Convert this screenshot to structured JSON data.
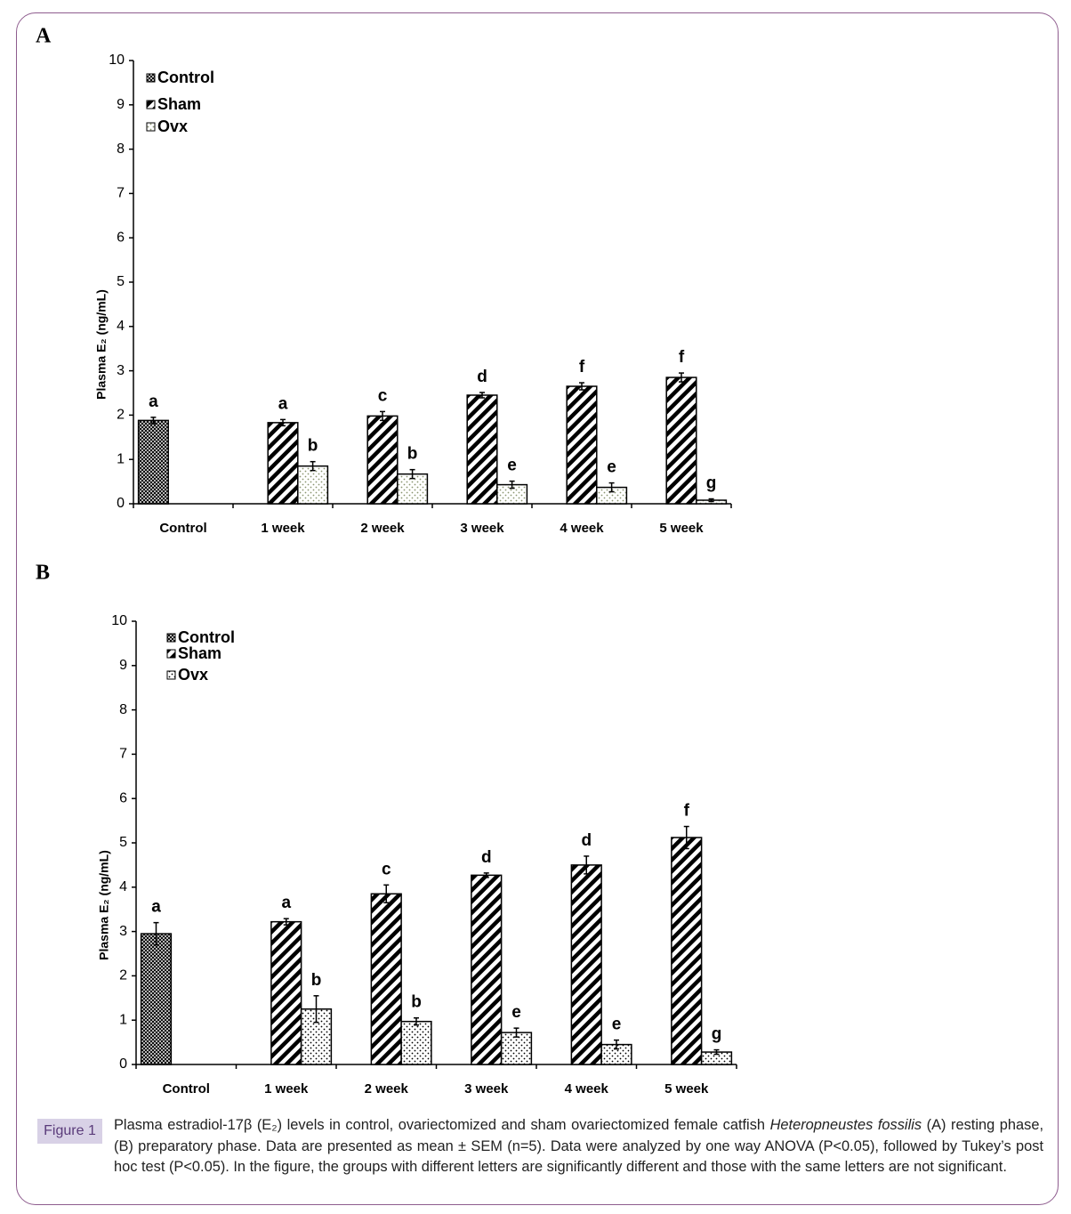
{
  "chart_data": [
    {
      "type": "bar",
      "label": "A",
      "ylabel": "Plasma E₂ (ng/mL)",
      "categories": [
        "Control",
        "1 week",
        "2 week",
        "3 week",
        "4 week",
        "5 week"
      ],
      "ylim": [
        0,
        10
      ],
      "yticks": [
        0,
        1,
        2,
        3,
        4,
        5,
        6,
        7,
        8,
        9,
        10
      ],
      "grid": false,
      "legend": "upper left",
      "series": [
        {
          "name": "Control",
          "pattern": "crosshatch",
          "color": "#000000",
          "values": [
            1.88,
            null,
            null,
            null,
            null,
            null
          ],
          "errors": [
            0.07,
            null,
            null,
            null,
            null,
            null
          ],
          "letters": [
            "a",
            null,
            null,
            null,
            null,
            null
          ]
        },
        {
          "name": "Sham",
          "pattern": "stripes",
          "color": "#000000",
          "values": [
            null,
            1.83,
            1.98,
            2.45,
            2.65,
            2.85
          ],
          "errors": [
            null,
            0.07,
            0.1,
            0.06,
            0.08,
            0.1
          ],
          "letters": [
            null,
            "a",
            "c",
            "d",
            "f",
            "f"
          ]
        },
        {
          "name": "Ovx",
          "pattern": "dots",
          "color": "#8a9470",
          "values": [
            null,
            0.85,
            0.67,
            0.43,
            0.37,
            0.08
          ],
          "errors": [
            null,
            0.1,
            0.1,
            0.08,
            0.1,
            0.03
          ],
          "letters": [
            null,
            "b",
            "b",
            "e",
            "e",
            "g"
          ]
        }
      ]
    },
    {
      "type": "bar",
      "label": "B",
      "ylabel": "Plasma E₂ (ng/mL)",
      "categories": [
        "Control",
        "1 week",
        "2 week",
        "3 week",
        "4 week",
        "5 week"
      ],
      "ylim": [
        0,
        10
      ],
      "yticks": [
        0,
        1,
        2,
        3,
        4,
        5,
        6,
        7,
        8,
        9,
        10
      ],
      "grid": false,
      "legend": "upper left",
      "series": [
        {
          "name": "Control",
          "pattern": "crosshatch",
          "color": "#000000",
          "values": [
            2.95,
            null,
            null,
            null,
            null,
            null
          ],
          "errors": [
            0.25,
            null,
            null,
            null,
            null,
            null
          ],
          "letters": [
            "a",
            null,
            null,
            null,
            null,
            null
          ]
        },
        {
          "name": "Sham",
          "pattern": "stripes",
          "color": "#000000",
          "values": [
            null,
            3.22,
            3.85,
            4.27,
            4.5,
            5.12
          ],
          "errors": [
            null,
            0.07,
            0.2,
            0.05,
            0.2,
            0.25
          ],
          "letters": [
            null,
            "a",
            "c",
            "d",
            "d",
            "f"
          ]
        },
        {
          "name": "Ovx",
          "pattern": "dots",
          "color": "#000000",
          "values": [
            null,
            1.25,
            0.97,
            0.72,
            0.45,
            0.28
          ],
          "errors": [
            null,
            0.3,
            0.08,
            0.1,
            0.1,
            0.05
          ],
          "letters": [
            null,
            "b",
            "b",
            "e",
            "e",
            "g"
          ]
        }
      ]
    }
  ],
  "figure": {
    "label": "Figure 1",
    "caption": [
      "Plasma estradiol-17β (E₂) levels in control, ovariectomized and sham ovariectomized female catfish ",
      "Heteropneustes fossilis",
      " (A) resting phase, (B) preparatory phase. Data are presented as mean ± SEM (n=5). Data were analyzed by one way  ANOVA (P<0.05), followed by Tukey’s post hoc test (P<0.05). In the figure, the groups with different letters are significantly different and those with the same letters are not significant."
    ]
  }
}
